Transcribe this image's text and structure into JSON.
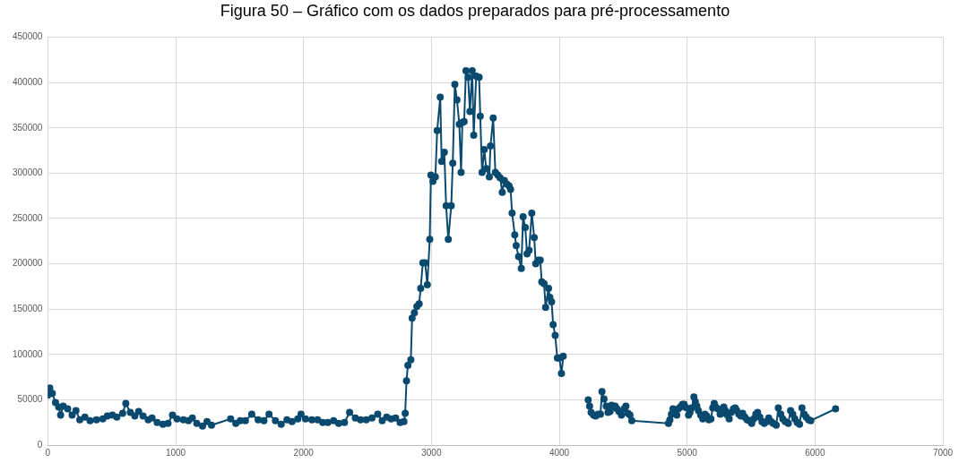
{
  "chart_data": {
    "type": "line",
    "title": "Figura 50 – Gráfico com os dados preparados para pré-processamento",
    "x": [
      0,
      15,
      35,
      60,
      85,
      100,
      120,
      155,
      190,
      220,
      250,
      290,
      330,
      380,
      430,
      465,
      505,
      540,
      585,
      610,
      645,
      680,
      710,
      745,
      785,
      815,
      855,
      900,
      940,
      975,
      1010,
      1060,
      1100,
      1130,
      1165,
      1210,
      1245,
      1280,
      1430,
      1470,
      1505,
      1545,
      1595,
      1645,
      1690,
      1730,
      1780,
      1825,
      1870,
      1910,
      1955,
      1980,
      2015,
      2065,
      2110,
      2150,
      2190,
      2235,
      2275,
      2320,
      2360,
      2405,
      2445,
      2490,
      2535,
      2580,
      2615,
      2650,
      2685,
      2720,
      2755,
      2785,
      2795,
      2805,
      2816,
      2839,
      2849,
      2867,
      2886,
      2904,
      2916,
      2933,
      2951,
      2968,
      2987,
      2996,
      3012,
      3031,
      3045,
      3069,
      3080,
      3101,
      3115,
      3132,
      3155,
      3167,
      3183,
      3200,
      3218,
      3232,
      3242,
      3256,
      3270,
      3287,
      3301,
      3319,
      3331,
      3350,
      3373,
      3382,
      3396,
      3413,
      3429,
      3453,
      3462,
      3483,
      3500,
      3519,
      3537,
      3554,
      3570,
      3589,
      3607,
      3619,
      3631,
      3652,
      3663,
      3682,
      3703,
      3717,
      3734,
      3748,
      3764,
      3785,
      3804,
      3816,
      3835,
      3851,
      3863,
      3881,
      3893,
      3916,
      3926,
      3940,
      3952,
      3968,
      3985,
      4001,
      4017,
      4031,
      null,
      4226,
      4237,
      4249,
      4268,
      4285,
      4303,
      4322,
      4334,
      4350,
      4367,
      4381,
      4397,
      4409,
      4426,
      4437,
      4451,
      4467,
      4486,
      4507,
      4521,
      4537,
      4553,
      4567,
      4854,
      4865,
      4877,
      4889,
      4905,
      4919,
      4931,
      4947,
      4963,
      4977,
      4994,
      5011,
      5022,
      5036,
      5053,
      5064,
      5076,
      5088,
      5106,
      5122,
      5139,
      5153,
      5170,
      5186,
      5200,
      5212,
      5223,
      5240,
      5258,
      5271,
      5287,
      5298,
      5315,
      5329,
      5345,
      5362,
      5376,
      5388,
      5404,
      5420,
      5434,
      5451,
      5469,
      5486,
      5505,
      5521,
      5537,
      5551,
      5568,
      5585,
      5603,
      5622,
      5638,
      5657,
      5673,
      5697,
      5713,
      5732,
      5748,
      5767,
      5791,
      5809,
      5826,
      5842,
      5861,
      5879,
      5898,
      5915,
      5931,
      5950,
      5967,
      6161
    ],
    "series": [
      {
        "color": "#0b4a6f",
        "values": [
          55000,
          63000,
          57000,
          47000,
          42000,
          33000,
          43000,
          40000,
          33000,
          38000,
          28000,
          31000,
          27000,
          28000,
          29000,
          32000,
          33000,
          31000,
          35000,
          46000,
          36000,
          32000,
          37000,
          32000,
          28000,
          30000,
          25000,
          23000,
          24000,
          33000,
          29000,
          28000,
          27000,
          30000,
          24000,
          21000,
          26000,
          22000,
          29000,
          24000,
          27000,
          27000,
          34000,
          28000,
          27000,
          34000,
          27000,
          23000,
          28000,
          26000,
          29000,
          34000,
          29000,
          28000,
          28000,
          25000,
          25000,
          27000,
          24000,
          25000,
          36000,
          30000,
          28000,
          28000,
          30000,
          34000,
          27000,
          31000,
          29000,
          30000,
          25000,
          26000,
          35000,
          71000,
          88000,
          94000,
          140000,
          146000,
          153000,
          156000,
          173000,
          201000,
          201000,
          177000,
          227000,
          298000,
          291000,
          296000,
          347000,
          384000,
          313000,
          323000,
          264000,
          227000,
          264000,
          311000,
          398000,
          381000,
          354000,
          301000,
          356000,
          357000,
          413000,
          406000,
          368000,
          413000,
          342000,
          407000,
          406000,
          363000,
          301000,
          326000,
          305000,
          296000,
          330000,
          361000,
          301000,
          298000,
          295000,
          279000,
          292000,
          288000,
          286000,
          282000,
          256000,
          232000,
          220000,
          208000,
          195000,
          252000,
          240000,
          211000,
          215000,
          256000,
          229000,
          200000,
          204000,
          204000,
          180000,
          178000,
          152000,
          173000,
          163000,
          158000,
          133000,
          121000,
          96000,
          96000,
          79000,
          98000,
          null,
          50000,
          43000,
          36000,
          33000,
          32000,
          34000,
          34000,
          59000,
          51000,
          43000,
          36000,
          37000,
          44000,
          42000,
          43000,
          40000,
          37000,
          33000,
          40000,
          43000,
          35000,
          33000,
          27000,
          24000,
          28000,
          34000,
          40000,
          35000,
          33000,
          40000,
          42000,
          45000,
          45000,
          41000,
          33000,
          36000,
          41000,
          53000,
          48000,
          43000,
          38000,
          33000,
          29000,
          34000,
          32000,
          28000,
          29000,
          41000,
          46000,
          42000,
          40000,
          34000,
          35000,
          42000,
          38000,
          33000,
          29000,
          36000,
          40000,
          41000,
          38000,
          34000,
          32000,
          35000,
          31000,
          28000,
          27000,
          24000,
          29000,
          34000,
          36000,
          31000,
          26000,
          24000,
          26000,
          30000,
          26000,
          24000,
          22000,
          41000,
          34000,
          29000,
          26000,
          24000,
          38000,
          34000,
          29000,
          25000,
          23000,
          41000,
          34000,
          31000,
          28000,
          27000,
          40000
        ]
      }
    ],
    "xlim": [
      0,
      7000
    ],
    "xticks": [
      0,
      1000,
      2000,
      3000,
      4000,
      5000,
      6000,
      7000
    ],
    "ylim": [
      0,
      450000
    ],
    "yticks": [
      0,
      50000,
      100000,
      150000,
      200000,
      250000,
      300000,
      350000,
      400000,
      450000
    ],
    "grid": true,
    "legend": false,
    "marker": "circle",
    "line_style": "solid"
  }
}
